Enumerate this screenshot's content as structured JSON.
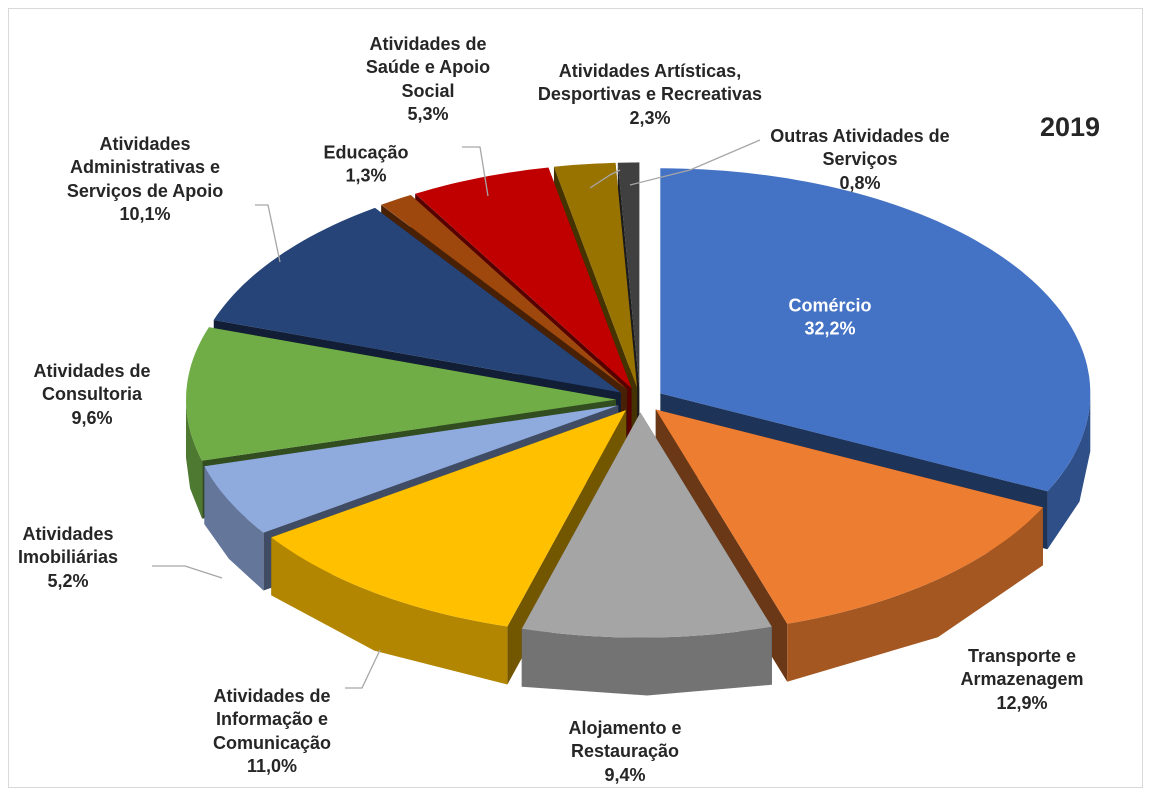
{
  "chart_data": {
    "type": "pie",
    "title": "2019",
    "categories": [
      "Comércio",
      "Transporte e Armazenagem",
      "Alojamento e Restauração",
      "Atividades de Informação e Comunicação",
      "Atividades Imobiliárias",
      "Atividades de Consultoria",
      "Atividades Administrativas e Serviços de Apoio",
      "Educação",
      "Atividades de Saúde e Apoio Social",
      "Atividades Artísticas, Desportivas e Recreativas",
      "Outras Atividades de Serviços"
    ],
    "values": [
      32.2,
      12.9,
      9.4,
      11.0,
      5.2,
      9.6,
      10.1,
      1.3,
      5.3,
      2.3,
      0.8
    ],
    "value_labels": [
      "32,2%",
      "12,9%",
      "9,4%",
      "11,0%",
      "5,2%",
      "9,6%",
      "10,1%",
      "1,3%",
      "5,3%",
      "2,3%",
      "0,8%"
    ],
    "colors": [
      "#4472c4",
      "#ed7d31",
      "#a5a5a5",
      "#ffc000",
      "#8faadc",
      "#70ad47",
      "#264478",
      "#9e480e",
      "#c00000",
      "#997300",
      "#404040"
    ]
  }
}
